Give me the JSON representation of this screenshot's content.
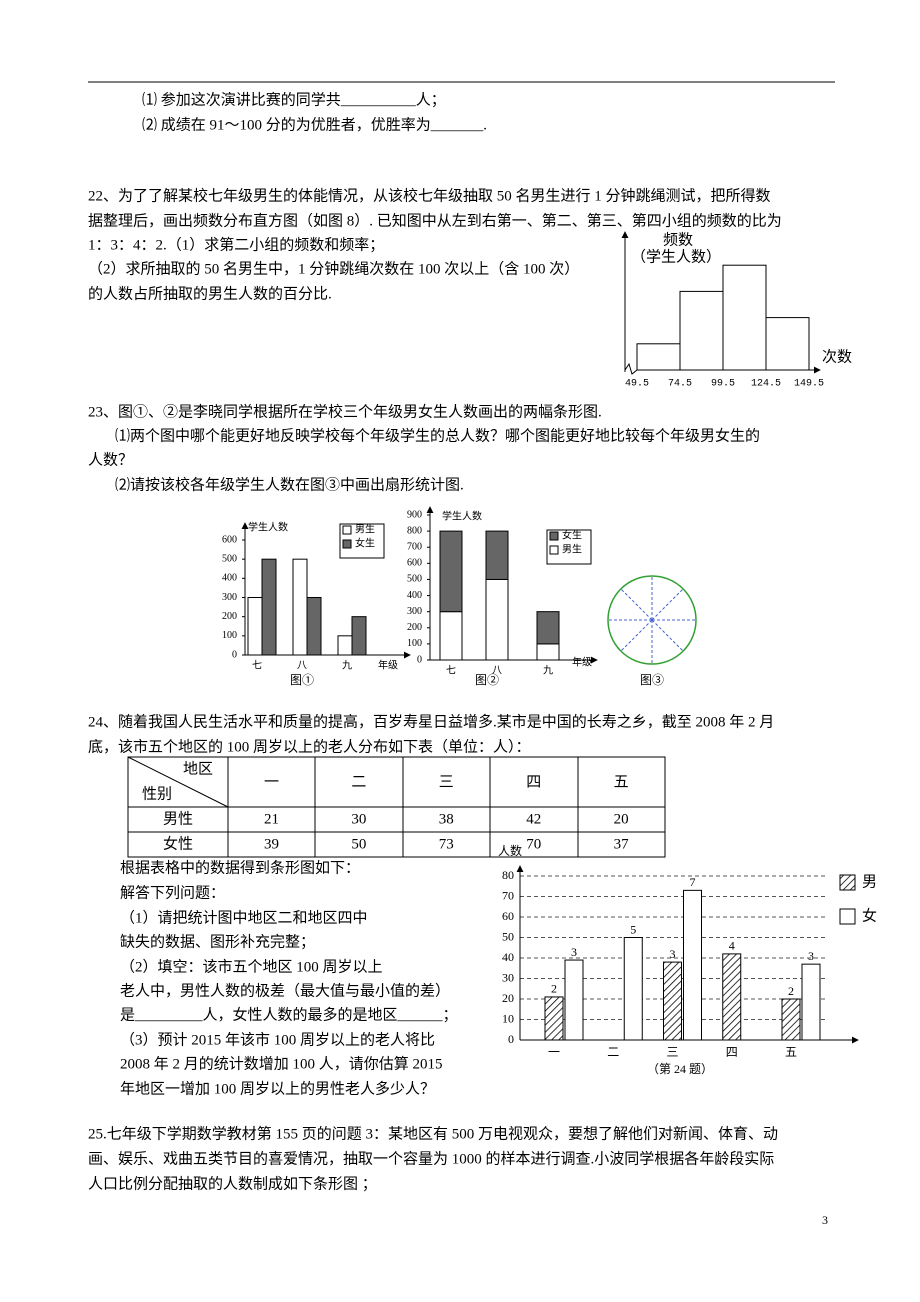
{
  "q21": [
    "⑴  参加这次演讲比赛的同学共__________人；",
    "⑵  成绩在 91～100 分的为优胜者，优胜率为_______."
  ],
  "q22": [
    "22、为了了解某校七年级男生的体能情况，从该校七年级抽取 50 名男生进行 1 分钟跳绳测试，把所得数",
    "据整理后，画出频数分布直方图（如图 8）. 已知图中从左到右第一、第二、第三、第四小组的频数的比为",
    "1：3：4：2.（1）求第二小组的频数和频率；",
    "（2）求所抽取的 50 名男生中，1 分钟跳绳次数在 100 次以上（含 100 次）",
    "的人数占所抽取的男生人数的百分比."
  ],
  "q23": [
    "23、图①、②是李晓同学根据所在学校三个年级男女生人数画出的两幅条形图.",
    "⑴两个图中哪个能更好地反映学校每个年级学生的总人数？哪个图能更好地比较每个年级男女生的",
    "人数？",
    "⑵请按该校各年级学生人数在图③中画出扇形统计图."
  ],
  "figure3": {
    "caption": "图③"
  },
  "q24": [
    "24、随着我国人民生活水平和质量的提高，百岁寿星日益增多.某市是中国的长寿之乡，截至 2008 年 2 月",
    "底，该市五个地区的 100 周岁以上的老人分布如下表（单位：人）："
  ],
  "table": {
    "corner_top": "地区",
    "corner_bottom": "性别",
    "columns": [
      "一",
      "二",
      "三",
      "四",
      "五"
    ],
    "rows": [
      [
        "男性",
        21,
        30,
        38,
        42,
        20
      ],
      [
        "女性",
        39,
        50,
        73,
        70,
        37
      ]
    ]
  },
  "q24_questions": [
    "根据表格中的数据得到条形图如下：",
    "解答下列问题：",
    "（1）请把统计图中地区二和地区四中",
    "缺失的数据、图形补充完整；",
    "（2）填空：该市五个地区 100 周岁以上",
    "老人中，男性人数的极差（最大值与最小值的差）",
    "是_________人，女性人数的最多的是地区______；",
    "（3）预计 2015 年该市 100 周岁以上的老人将比",
    "2008 年 2 月的统计数增加 100 人，请你估算 2015",
    "年地区一增加 100 周岁以上的男性老人多少人？"
  ],
  "q25": [
    "25.七年级下学期数学教材第 155 页的问题 3：某地区有 500 万电视观众，要想了解他们对新闻、体育、动",
    "画、娱乐、戏曲五类节目的喜爱情况，抽取一个容量为 1000 的样本进行调查.小波同学根据各年龄段实际",
    "人口比例分配抽取的人数制成如下条形图 ；"
  ],
  "page_number": "3",
  "chart_data": [
    {
      "type": "histogram",
      "y_label": "频数",
      "y_label_sub": "（学生人数）",
      "x_label": "次数",
      "bins": [
        49.5,
        74.5,
        99.5,
        124.5,
        149.5
      ],
      "values": [
        5,
        15,
        20,
        10
      ],
      "color": "#ffffff",
      "xlim": [
        49.5,
        149.5
      ],
      "xticks": [
        49.5,
        74.5,
        99.5,
        124.5,
        149.5
      ],
      "ylim": [
        0,
        25
      ]
    },
    {
      "type": "bar",
      "y_label": "学生人数",
      "x_label": "年级",
      "caption": "图①",
      "categories": [
        "七",
        "八",
        "九"
      ],
      "series": [
        {
          "name": "男生",
          "color": "#ffffff",
          "values": [
            300,
            500,
            100
          ]
        },
        {
          "name": "女生",
          "color": "#666666",
          "values": [
            500,
            300,
            200
          ]
        }
      ],
      "ylim": [
        0,
        600
      ],
      "yticks": [
        0,
        100,
        200,
        300,
        400,
        500,
        600
      ]
    },
    {
      "type": "stacked_bar",
      "y_label": "学生人数",
      "x_label": "年级",
      "caption": "图②",
      "categories": [
        "七",
        "八",
        "九"
      ],
      "series": [
        {
          "name": "男生",
          "color": "#ffffff",
          "values": [
            300,
            500,
            100
          ]
        },
        {
          "name": "女生",
          "color": "#666666",
          "values": [
            500,
            300,
            200
          ]
        }
      ],
      "ylim": [
        0,
        900
      ],
      "yticks": [
        0,
        100,
        200,
        300,
        400,
        500,
        600,
        700,
        800,
        900
      ]
    },
    {
      "type": "grouped_bar",
      "y_label": "人数",
      "caption": "（第 24 题）",
      "categories": [
        "一",
        "二",
        "三",
        "四",
        "五"
      ],
      "series": [
        {
          "name": "男",
          "pattern": "hatch",
          "values": [
            21,
            null,
            38,
            42,
            20
          ]
        },
        {
          "name": "女",
          "color": "#ffffff",
          "values": [
            39,
            50,
            73,
            null,
            37
          ]
        }
      ],
      "annotations": [
        "2",
        "3",
        "5",
        "3",
        "7",
        "4",
        "2",
        "3"
      ],
      "ylim": [
        0,
        80
      ],
      "yticks": [
        0,
        10,
        20,
        30,
        40,
        50,
        60,
        70,
        80
      ],
      "grid": true
    }
  ]
}
